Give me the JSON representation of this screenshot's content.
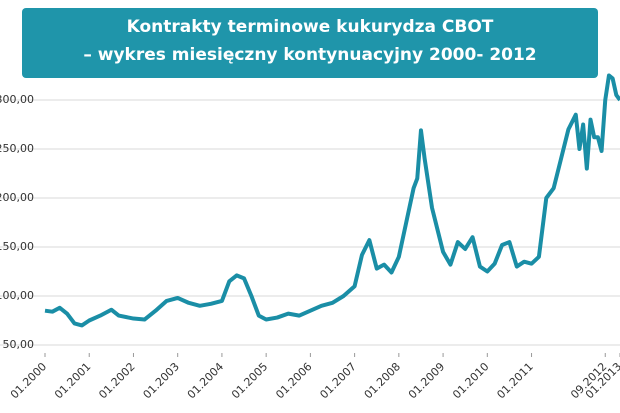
{
  "chart_data": {
    "type": "line",
    "title": "Kontrakty terminowe kukurydza CBOT",
    "subtitle": "– wykres miesięczny kontynuacyjny 2000- 2012",
    "x": [
      0,
      2,
      4,
      6,
      8,
      10,
      12,
      15,
      18,
      20,
      24,
      27,
      30,
      33,
      36,
      39,
      42,
      45,
      48,
      50,
      52,
      54,
      56,
      58,
      60,
      63,
      66,
      69,
      72,
      75,
      78,
      81,
      84,
      86,
      88,
      90,
      92,
      94,
      96,
      98,
      100,
      101,
      102,
      103,
      105,
      108,
      110,
      112,
      114,
      116,
      118,
      120,
      122,
      124,
      126,
      128,
      130,
      132,
      134,
      136,
      138,
      140,
      142,
      144,
      145,
      146,
      147,
      148,
      149,
      150,
      151,
      152,
      153,
      154,
      155,
      156
    ],
    "series": [
      {
        "name": "kukurydza CBOT",
        "color": "#1a8ea6",
        "values": [
          85,
          84,
          88,
          82,
          72,
          70,
          75,
          80,
          86,
          80,
          77,
          76,
          85,
          95,
          98,
          93,
          90,
          92,
          95,
          115,
          121,
          118,
          100,
          80,
          76,
          78,
          82,
          80,
          85,
          90,
          93,
          100,
          110,
          142,
          157,
          128,
          132,
          124,
          140,
          175,
          210,
          220,
          269,
          240,
          190,
          145,
          132,
          155,
          148,
          160,
          130,
          125,
          133,
          152,
          155,
          130,
          135,
          133,
          140,
          200,
          210,
          240,
          270,
          285,
          250,
          275,
          230,
          280,
          262,
          262,
          248,
          300,
          325,
          322,
          305,
          300
        ]
      }
    ],
    "xlim": [
      0,
      156
    ],
    "xticks": [
      {
        "value": 0,
        "label": "01.2000"
      },
      {
        "value": 12,
        "label": "01.2001"
      },
      {
        "value": 24,
        "label": "01.2002"
      },
      {
        "value": 36,
        "label": "01.2003"
      },
      {
        "value": 48,
        "label": "01.2004"
      },
      {
        "value": 60,
        "label": "01.2005"
      },
      {
        "value": 72,
        "label": "01.2006"
      },
      {
        "value": 84,
        "label": "01.2007"
      },
      {
        "value": 96,
        "label": "01.2008"
      },
      {
        "value": 108,
        "label": "01.2009"
      },
      {
        "value": 120,
        "label": "01.2010"
      },
      {
        "value": 132,
        "label": "01.2011"
      },
      {
        "value": 152,
        "label": "09.2012"
      },
      {
        "value": 156,
        "label": "01.2013"
      }
    ],
    "ylim": [
      50,
      300
    ],
    "yticks": [
      {
        "value": 50,
        "label": "50,00"
      },
      {
        "value": 100,
        "label": "100,00"
      },
      {
        "value": 150,
        "label": "150,00"
      },
      {
        "value": 200,
        "label": "200,00"
      },
      {
        "value": 250,
        "label": "250,00"
      },
      {
        "value": 300,
        "label": "300,00"
      }
    ],
    "grid": true,
    "title_color": "#1f95aa"
  }
}
